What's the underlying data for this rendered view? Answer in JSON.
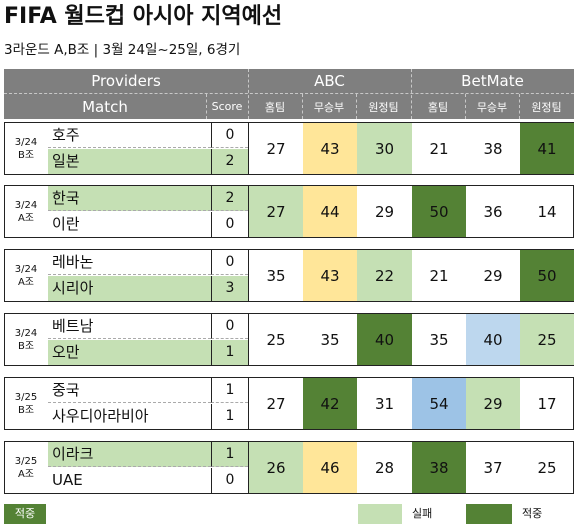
{
  "title": "FIFA 월드컵 아시아 지역예선",
  "subtitle": "3라운드 A,B조 | 3월 24일~25일, 6경기",
  "colors": {
    "header_bg": "#7f7f7f",
    "yellow": "#ffe699",
    "light_green": "#c5e0b4",
    "dark_green": "#548235",
    "blue": "#bdd7ee",
    "mid_blue": "#9dc3e6"
  },
  "header": {
    "providers": "Providers",
    "match": "Match",
    "score": "Score",
    "abc": "ABC",
    "betmate": "BetMate",
    "home": "홈팀",
    "draw": "무승부",
    "away": "원정팀"
  },
  "matches": [
    {
      "date": "3/24",
      "group": "B조",
      "team1": "호주",
      "team2": "일본",
      "score1": "0",
      "score2": "2",
      "winner": 2,
      "abc": [
        "27",
        "43",
        "30"
      ],
      "betmate": [
        "21",
        "38",
        "41"
      ],
      "abc_colors": [
        "",
        "yellow",
        "light_green"
      ],
      "bm_colors": [
        "",
        "",
        "dark_green"
      ]
    },
    {
      "date": "3/24",
      "group": "A조",
      "team1": "한국",
      "team2": "이란",
      "score1": "2",
      "score2": "0",
      "winner": 1,
      "abc": [
        "27",
        "44",
        "29"
      ],
      "betmate": [
        "50",
        "36",
        "14"
      ],
      "abc_colors": [
        "light_green",
        "yellow",
        ""
      ],
      "bm_colors": [
        "dark_green",
        "",
        ""
      ]
    },
    {
      "date": "3/24",
      "group": "A조",
      "team1": "레바논",
      "team2": "시리아",
      "score1": "0",
      "score2": "3",
      "winner": 2,
      "abc": [
        "35",
        "43",
        "22"
      ],
      "betmate": [
        "21",
        "29",
        "50"
      ],
      "abc_colors": [
        "",
        "yellow",
        "light_green"
      ],
      "bm_colors": [
        "",
        "",
        "dark_green"
      ]
    },
    {
      "date": "3/24",
      "group": "B조",
      "team1": "베트남",
      "team2": "오만",
      "score1": "0",
      "score2": "1",
      "winner": 2,
      "abc": [
        "25",
        "35",
        "40"
      ],
      "betmate": [
        "35",
        "40",
        "25"
      ],
      "abc_colors": [
        "",
        "",
        "dark_green"
      ],
      "bm_colors": [
        "",
        "blue",
        "light_green"
      ]
    },
    {
      "date": "3/25",
      "group": "B조",
      "team1": "중국",
      "team2": "사우디아라비아",
      "score1": "1",
      "score2": "1",
      "winner": 0,
      "abc": [
        "27",
        "42",
        "31"
      ],
      "betmate": [
        "54",
        "29",
        "17"
      ],
      "abc_colors": [
        "",
        "dark_green",
        ""
      ],
      "bm_colors": [
        "mid_blue",
        "light_green",
        ""
      ]
    },
    {
      "date": "3/25",
      "group": "A조",
      "team1": "이라크",
      "team2": "UAE",
      "score1": "1",
      "score2": "0",
      "winner": 1,
      "abc": [
        "26",
        "46",
        "28"
      ],
      "betmate": [
        "38",
        "37",
        "25"
      ],
      "abc_colors": [
        "light_green",
        "yellow",
        ""
      ],
      "bm_colors": [
        "dark_green",
        "",
        ""
      ]
    }
  ],
  "legend": {
    "hit": "적중",
    "miss": "실패",
    "hit2": "적중"
  }
}
